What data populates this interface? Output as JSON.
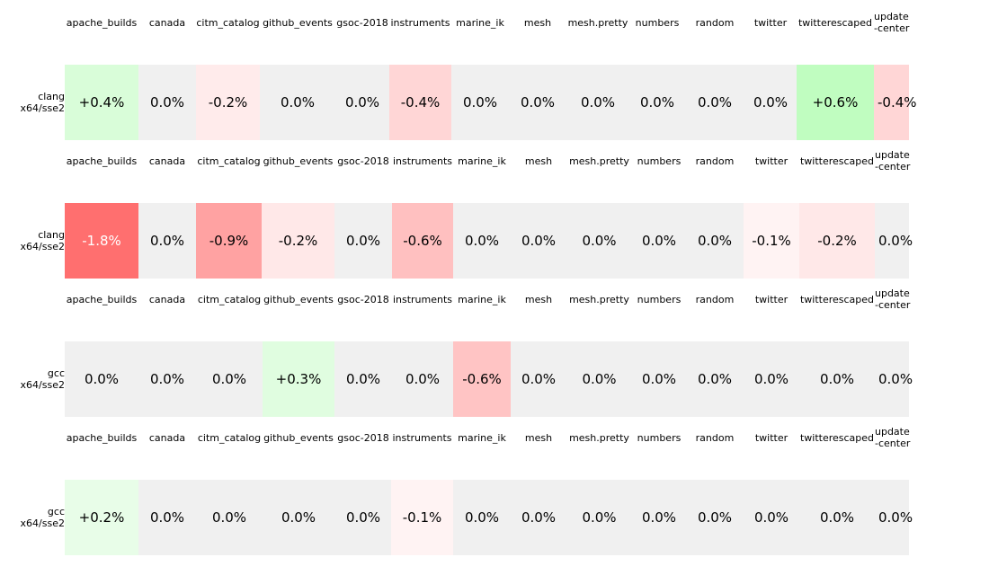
{
  "chart_data": [
    {
      "type": "heatmap",
      "row_label": [
        "clang",
        "x64/sse2"
      ],
      "columns": [
        "apache_builds",
        "canada",
        "citm_catalog",
        "github_events",
        "gsoc-2018",
        "instruments",
        "marine_ik",
        "mesh",
        "mesh.pretty",
        "numbers",
        "random",
        "twitter",
        "twitterescaped",
        "update-center"
      ],
      "values": [
        "+0.4%",
        "0.0%",
        "-0.2%",
        "0.0%",
        "0.0%",
        "-0.4%",
        "0.0%",
        "0.0%",
        "0.0%",
        "0.0%",
        "0.0%",
        "0.0%",
        "+0.6%",
        "-0.4%"
      ],
      "colors": [
        "#d9fdd9",
        "#f0f0f0",
        "#ffebeb",
        "#f0f0f0",
        "#f0f0f0",
        "#ffd6d6",
        "#f0f0f0",
        "#f0f0f0",
        "#f0f0f0",
        "#f0f0f0",
        "#f0f0f0",
        "#f0f0f0",
        "#c0fdc0",
        "#ffd6d6"
      ],
      "text_colors": [
        "#000",
        "#000",
        "#000",
        "#000",
        "#000",
        "#000",
        "#000",
        "#000",
        "#000",
        "#000",
        "#000",
        "#000",
        "#000",
        "#000"
      ]
    },
    {
      "type": "heatmap",
      "row_label": [
        "clang",
        "x64/sse2"
      ],
      "columns": [
        "apache_builds",
        "canada",
        "citm_catalog",
        "github_events",
        "gsoc-2018",
        "instruments",
        "marine_ik",
        "mesh",
        "mesh.pretty",
        "numbers",
        "random",
        "twitter",
        "twitterescaped",
        "update-center"
      ],
      "values": [
        "-1.8%",
        "0.0%",
        "-0.9%",
        "-0.2%",
        "0.0%",
        "-0.6%",
        "0.0%",
        "0.0%",
        "0.0%",
        "0.0%",
        "0.0%",
        "-0.1%",
        "-0.2%",
        "0.0%"
      ],
      "colors": [
        "#ff6f6f",
        "#f0f0f0",
        "#ffa2a2",
        "#ffe8e8",
        "#f0f0f0",
        "#ffc0c0",
        "#f0f0f0",
        "#f0f0f0",
        "#f0f0f0",
        "#f0f0f0",
        "#f0f0f0",
        "#fff3f3",
        "#ffe8e8",
        "#f0f0f0"
      ],
      "text_colors": [
        "#ffffff",
        "#000",
        "#000",
        "#000",
        "#000",
        "#000",
        "#000",
        "#000",
        "#000",
        "#000",
        "#000",
        "#000",
        "#000",
        "#000"
      ]
    },
    {
      "type": "heatmap",
      "row_label": [
        "gcc",
        "x64/sse2"
      ],
      "columns": [
        "apache_builds",
        "canada",
        "citm_catalog",
        "github_events",
        "gsoc-2018",
        "instruments",
        "marine_ik",
        "mesh",
        "mesh.pretty",
        "numbers",
        "random",
        "twitter",
        "twitterescaped",
        "update-center"
      ],
      "values": [
        "0.0%",
        "0.0%",
        "0.0%",
        "+0.3%",
        "0.0%",
        "0.0%",
        "-0.6%",
        "0.0%",
        "0.0%",
        "0.0%",
        "0.0%",
        "0.0%",
        "0.0%",
        "0.0%"
      ],
      "colors": [
        "#f0f0f0",
        "#f0f0f0",
        "#f0f0f0",
        "#e0fde0",
        "#f0f0f0",
        "#f0f0f0",
        "#ffc4c4",
        "#f0f0f0",
        "#f0f0f0",
        "#f0f0f0",
        "#f0f0f0",
        "#f0f0f0",
        "#f0f0f0",
        "#f0f0f0"
      ],
      "text_colors": [
        "#000",
        "#000",
        "#000",
        "#000",
        "#000",
        "#000",
        "#000",
        "#000",
        "#000",
        "#000",
        "#000",
        "#000",
        "#000",
        "#000"
      ]
    },
    {
      "type": "heatmap",
      "row_label": [
        "gcc",
        "x64/sse2"
      ],
      "columns": [
        "apache_builds",
        "canada",
        "citm_catalog",
        "github_events",
        "gsoc-2018",
        "instruments",
        "marine_ik",
        "mesh",
        "mesh.pretty",
        "numbers",
        "random",
        "twitter",
        "twitterescaped",
        "update-center"
      ],
      "values": [
        "+0.2%",
        "0.0%",
        "0.0%",
        "0.0%",
        "0.0%",
        "-0.1%",
        "0.0%",
        "0.0%",
        "0.0%",
        "0.0%",
        "0.0%",
        "0.0%",
        "0.0%",
        "0.0%"
      ],
      "colors": [
        "#e8fde8",
        "#f0f0f0",
        "#f0f0f0",
        "#f0f0f0",
        "#f0f0f0",
        "#fff3f3",
        "#f0f0f0",
        "#f0f0f0",
        "#f0f0f0",
        "#f0f0f0",
        "#f0f0f0",
        "#f0f0f0",
        "#f0f0f0",
        "#f0f0f0"
      ],
      "text_colors": [
        "#000",
        "#000",
        "#000",
        "#000",
        "#000",
        "#000",
        "#000",
        "#000",
        "#000",
        "#000",
        "#000",
        "#000",
        "#000",
        "#000"
      ]
    }
  ]
}
